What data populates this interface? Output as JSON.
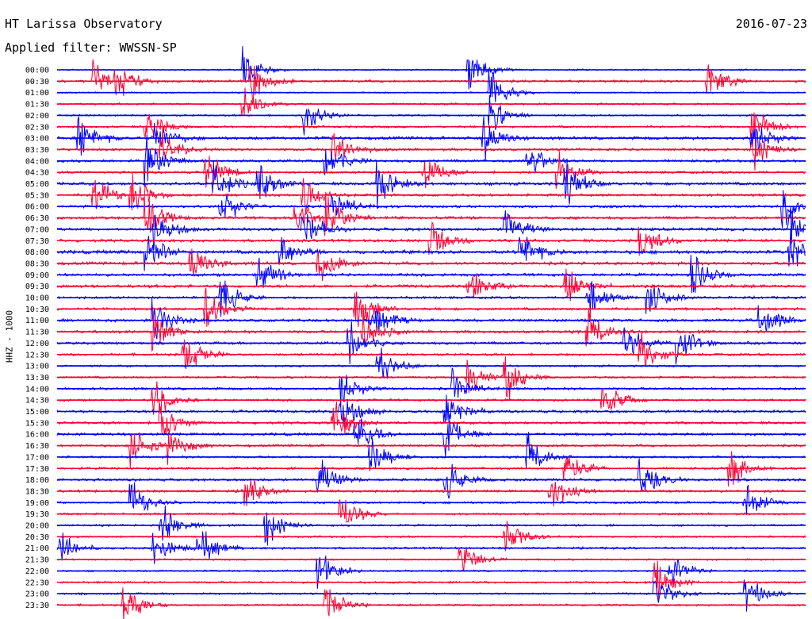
{
  "header": {
    "title": "HT Larissa Observatory",
    "date": "2016-07-23",
    "filter": "Applied filter: WWSSN-SP"
  },
  "chart_data": {
    "type": "line",
    "ylabel": "HHZ - 1000",
    "colors": [
      "#0000ff",
      "#ff0033"
    ],
    "traces": [
      {
        "label": "00:00",
        "color": "#0000ff",
        "amplitude": 0.35,
        "events": [
          0.25,
          0.55
        ]
      },
      {
        "label": "00:30",
        "color": "#ff0033",
        "amplitude": 0.55,
        "events": [
          0.05,
          0.08,
          0.26,
          0.87
        ]
      },
      {
        "label": "01:00",
        "color": "#0000ff",
        "amplitude": 0.3,
        "events": [
          0.58
        ]
      },
      {
        "label": "01:30",
        "color": "#ff0033",
        "amplitude": 0.45,
        "events": [
          0.25
        ]
      },
      {
        "label": "02:00",
        "color": "#0000ff",
        "amplitude": 0.4,
        "events": [
          0.58,
          0.33
        ]
      },
      {
        "label": "02:30",
        "color": "#ff0033",
        "amplitude": 0.5,
        "events": [
          0.12,
          0.93
        ]
      },
      {
        "label": "03:00",
        "color": "#0000ff",
        "amplitude": 0.7,
        "events": [
          0.03,
          0.13,
          0.57,
          0.93
        ]
      },
      {
        "label": "03:30",
        "color": "#ff0033",
        "amplitude": 0.6,
        "events": [
          0.14,
          0.37,
          0.93
        ]
      },
      {
        "label": "04:00",
        "color": "#0000ff",
        "amplitude": 0.6,
        "events": [
          0.12,
          0.36,
          0.63
        ]
      },
      {
        "label": "04:30",
        "color": "#ff0033",
        "amplitude": 0.55,
        "events": [
          0.2,
          0.49,
          0.67
        ]
      },
      {
        "label": "05:00",
        "color": "#0000ff",
        "amplitude": 0.7,
        "events": [
          0.21,
          0.27,
          0.43,
          0.68
        ]
      },
      {
        "label": "05:30",
        "color": "#ff0033",
        "amplitude": 0.6,
        "events": [
          0.05,
          0.1,
          0.33
        ]
      },
      {
        "label": "06:00",
        "color": "#0000ff",
        "amplitude": 0.6,
        "events": [
          0.22,
          0.37,
          0.97
        ]
      },
      {
        "label": "06:30",
        "color": "#ff0033",
        "amplitude": 0.65,
        "events": [
          0.12,
          0.32,
          0.36
        ]
      },
      {
        "label": "07:00",
        "color": "#0000ff",
        "amplitude": 0.7,
        "events": [
          0.13,
          0.33,
          0.6,
          0.98
        ]
      },
      {
        "label": "07:30",
        "color": "#ff0033",
        "amplitude": 0.65,
        "events": [
          0.5,
          0.78
        ]
      },
      {
        "label": "08:00",
        "color": "#0000ff",
        "amplitude": 0.8,
        "events": [
          0.12,
          0.3,
          0.62,
          0.98
        ]
      },
      {
        "label": "08:30",
        "color": "#ff0033",
        "amplitude": 0.7,
        "events": [
          0.18,
          0.35
        ]
      },
      {
        "label": "09:00",
        "color": "#0000ff",
        "amplitude": 0.65,
        "events": [
          0.27,
          0.85
        ]
      },
      {
        "label": "09:30",
        "color": "#ff0033",
        "amplitude": 0.7,
        "events": [
          0.55,
          0.68
        ]
      },
      {
        "label": "10:00",
        "color": "#0000ff",
        "amplitude": 0.55,
        "events": [
          0.22,
          0.71,
          0.79
        ]
      },
      {
        "label": "10:30",
        "color": "#ff0033",
        "amplitude": 0.6,
        "events": [
          0.2,
          0.4
        ]
      },
      {
        "label": "11:00",
        "color": "#0000ff",
        "amplitude": 0.65,
        "events": [
          0.13,
          0.42,
          0.94
        ]
      },
      {
        "label": "11:30",
        "color": "#ff0033",
        "amplitude": 0.65,
        "events": [
          0.13,
          0.41,
          0.71
        ]
      },
      {
        "label": "12:00",
        "color": "#0000ff",
        "amplitude": 0.6,
        "events": [
          0.39,
          0.76,
          0.83
        ]
      },
      {
        "label": "12:30",
        "color": "#ff0033",
        "amplitude": 0.55,
        "events": [
          0.17,
          0.78
        ]
      },
      {
        "label": "13:00",
        "color": "#0000ff",
        "amplitude": 0.45,
        "events": [
          0.43
        ]
      },
      {
        "label": "13:30",
        "color": "#ff0033",
        "amplitude": 0.5,
        "events": [
          0.55,
          0.6
        ]
      },
      {
        "label": "14:00",
        "color": "#0000ff",
        "amplitude": 0.55,
        "events": [
          0.38,
          0.53
        ]
      },
      {
        "label": "14:30",
        "color": "#ff0033",
        "amplitude": 0.5,
        "events": [
          0.13,
          0.73
        ]
      },
      {
        "label": "15:00",
        "color": "#0000ff",
        "amplitude": 0.65,
        "events": [
          0.38,
          0.52
        ]
      },
      {
        "label": "15:30",
        "color": "#ff0033",
        "amplitude": 0.6,
        "events": [
          0.14,
          0.37
        ]
      },
      {
        "label": "16:00",
        "color": "#0000ff",
        "amplitude": 0.6,
        "events": [
          0.4,
          0.52
        ]
      },
      {
        "label": "16:30",
        "color": "#ff0033",
        "amplitude": 0.55,
        "events": [
          0.1,
          0.15
        ]
      },
      {
        "label": "17:00",
        "color": "#0000ff",
        "amplitude": 0.5,
        "events": [
          0.42,
          0.63
        ]
      },
      {
        "label": "17:30",
        "color": "#ff0033",
        "amplitude": 0.5,
        "events": [
          0.68,
          0.9
        ]
      },
      {
        "label": "18:00",
        "color": "#0000ff",
        "amplitude": 0.6,
        "events": [
          0.35,
          0.52,
          0.78
        ]
      },
      {
        "label": "18:30",
        "color": "#ff0033",
        "amplitude": 0.55,
        "events": [
          0.25,
          0.66
        ]
      },
      {
        "label": "19:00",
        "color": "#0000ff",
        "amplitude": 0.5,
        "events": [
          0.1,
          0.92
        ]
      },
      {
        "label": "19:30",
        "color": "#ff0033",
        "amplitude": 0.45,
        "events": [
          0.38
        ]
      },
      {
        "label": "20:00",
        "color": "#0000ff",
        "amplitude": 0.45,
        "events": [
          0.14,
          0.28
        ]
      },
      {
        "label": "20:30",
        "color": "#ff0033",
        "amplitude": 0.45,
        "events": [
          0.6
        ]
      },
      {
        "label": "21:00",
        "color": "#0000ff",
        "amplitude": 0.5,
        "events": [
          0.0,
          0.13,
          0.19
        ]
      },
      {
        "label": "21:30",
        "color": "#ff0033",
        "amplitude": 0.4,
        "events": [
          0.54
        ]
      },
      {
        "label": "22:00",
        "color": "#0000ff",
        "amplitude": 0.4,
        "events": [
          0.35,
          0.82
        ]
      },
      {
        "label": "22:30",
        "color": "#ff0033",
        "amplitude": 0.45,
        "events": [
          0.8
        ]
      },
      {
        "label": "23:00",
        "color": "#0000ff",
        "amplitude": 0.45,
        "events": [
          0.8,
          0.92
        ]
      },
      {
        "label": "23:30",
        "color": "#ff0033",
        "amplitude": 0.45,
        "events": [
          0.09,
          0.36
        ]
      }
    ]
  }
}
